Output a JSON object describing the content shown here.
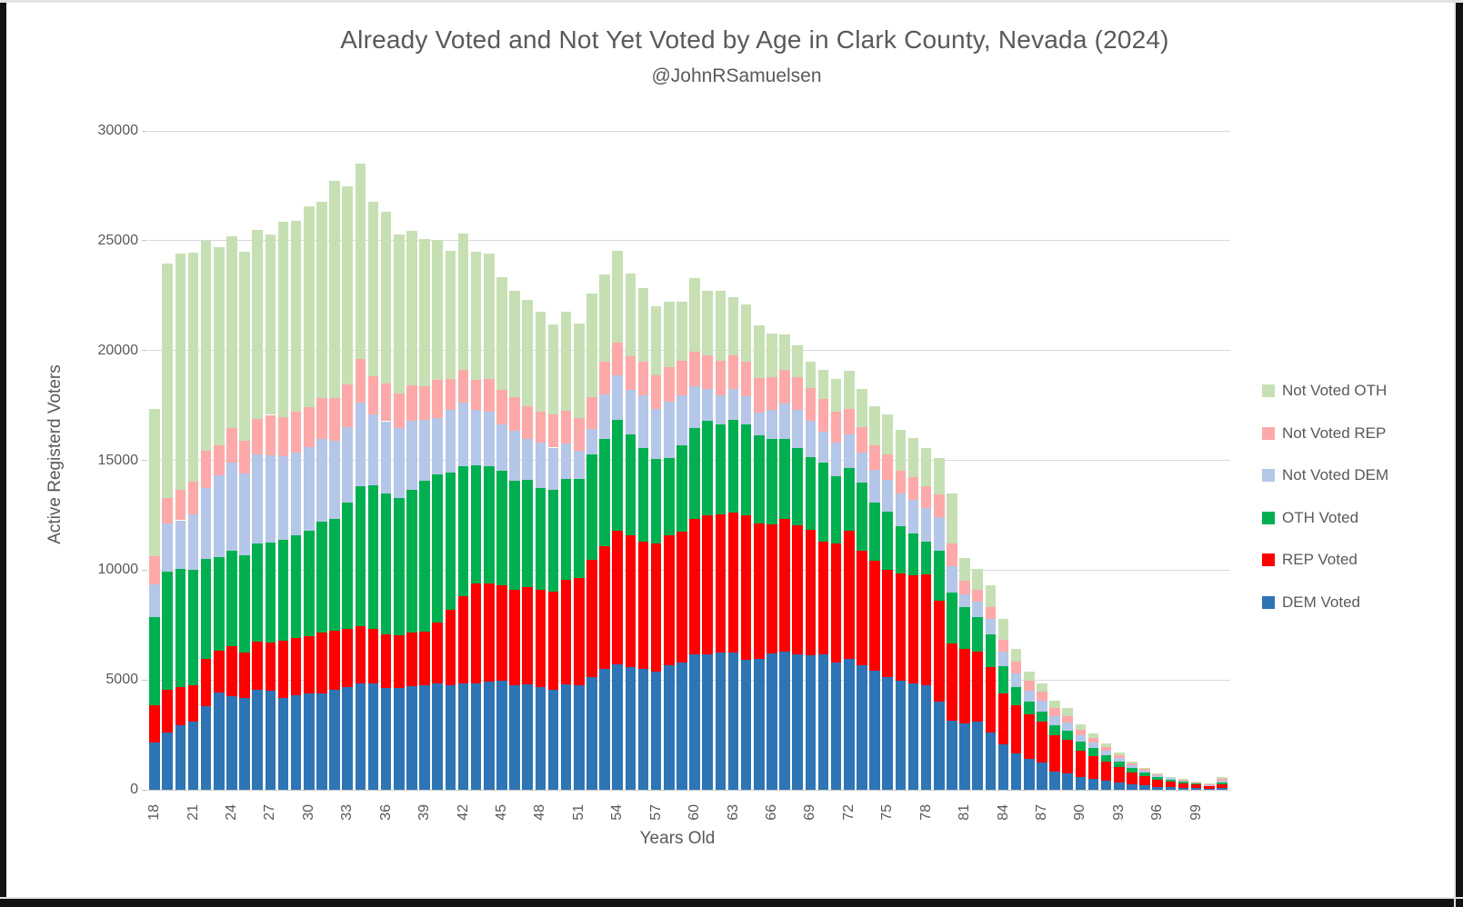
{
  "title": "Already Voted and Not Yet Voted by Age in Clark County, Nevada (2024)",
  "subtitle": "@JohnRSamuelsen",
  "chart_data": {
    "type": "bar",
    "stacked": true,
    "title": "Already Voted and Not Yet Voted by Age in Clark County, Nevada (2024)",
    "subtitle": "@JohnRSamuelsen",
    "xlabel": "Years Old",
    "ylabel": "Active Registerd Voters",
    "ylim": [
      0,
      30000
    ],
    "ytick_step": 5000,
    "ytick_labels": [
      "0",
      "5000",
      "10000",
      "15000",
      "20000",
      "25000",
      "30000"
    ],
    "xtick_labels": [
      "18",
      "21",
      "24",
      "27",
      "30",
      "33",
      "36",
      "39",
      "42",
      "45",
      "48",
      "51",
      "54",
      "57",
      "60",
      "63",
      "66",
      "69",
      "72",
      "75",
      "78",
      "81",
      "84",
      "87",
      "90",
      "93",
      "96",
      "99"
    ],
    "grid": true,
    "legend_position": "right",
    "legend_order_top_to_bottom": [
      "Not Voted OTH",
      "Not Voted REP",
      "Not Voted DEM",
      "OTH Voted",
      "REP Voted",
      "DEM Voted"
    ],
    "ages": [
      18,
      19,
      20,
      21,
      22,
      23,
      24,
      25,
      26,
      27,
      28,
      29,
      30,
      31,
      32,
      33,
      34,
      35,
      36,
      37,
      38,
      39,
      40,
      41,
      42,
      43,
      44,
      45,
      46,
      47,
      48,
      49,
      50,
      51,
      52,
      53,
      54,
      55,
      56,
      57,
      58,
      59,
      60,
      61,
      62,
      63,
      64,
      65,
      66,
      67,
      68,
      69,
      70,
      71,
      72,
      73,
      74,
      75,
      76,
      77,
      78,
      79,
      80,
      81,
      82,
      83,
      84,
      85,
      86,
      87,
      88,
      89,
      90,
      91,
      92,
      93,
      94,
      95,
      96,
      97,
      98,
      99,
      100,
      101
    ],
    "series": [
      {
        "name": "DEM Voted",
        "color": "#2e75b6",
        "values": [
          2150,
          2600,
          2930,
          3100,
          3800,
          4420,
          4260,
          4170,
          4545,
          4500,
          4170,
          4300,
          4380,
          4380,
          4545,
          4670,
          4830,
          4830,
          4630,
          4630,
          4710,
          4750,
          4830,
          4750,
          4830,
          4850,
          4930,
          4960,
          4750,
          4790,
          4680,
          4545,
          4790,
          4750,
          5120,
          5490,
          5710,
          5580,
          5490,
          5400,
          5650,
          5790,
          6170,
          6170,
          6230,
          6230,
          5920,
          5970,
          6200,
          6270,
          6170,
          6130,
          6170,
          5790,
          5950,
          5660,
          5410,
          5120,
          4960,
          4850,
          4750,
          4010,
          3130,
          3030,
          3100,
          2600,
          2070,
          1650,
          1405,
          1240,
          830,
          750,
          600,
          500,
          400,
          320,
          250,
          190,
          140,
          110,
          90,
          70,
          50,
          80
        ]
      },
      {
        "name": "REP Voted",
        "color": "#fe0000",
        "values": [
          1690,
          1945,
          1740,
          1650,
          2150,
          1900,
          2270,
          2070,
          2195,
          2190,
          2610,
          2600,
          2600,
          2770,
          2685,
          2645,
          2610,
          2485,
          2440,
          2390,
          2440,
          2440,
          2770,
          3450,
          3970,
          4530,
          4470,
          4370,
          4340,
          4430,
          4410,
          4475,
          4780,
          4880,
          5340,
          5590,
          6070,
          5990,
          5800,
          5830,
          5920,
          5950,
          6150,
          6340,
          6300,
          6400,
          6570,
          6150,
          5900,
          6050,
          5880,
          5720,
          5120,
          5410,
          5830,
          5220,
          5000,
          4880,
          4880,
          4900,
          5050,
          4600,
          3520,
          3370,
          3200,
          2980,
          2330,
          2210,
          2015,
          1860,
          1650,
          1520,
          1200,
          1050,
          880,
          730,
          550,
          430,
          320,
          260,
          210,
          160,
          110,
          180
        ]
      },
      {
        "name": "OTH Voted",
        "color": "#00b050",
        "values": [
          4010,
          5405,
          5370,
          5250,
          4550,
          4260,
          4340,
          4420,
          4460,
          4550,
          4620,
          4700,
          4820,
          5050,
          5120,
          5745,
          6400,
          6565,
          6440,
          6280,
          6490,
          6900,
          6740,
          6260,
          5950,
          5410,
          5350,
          5210,
          4960,
          4910,
          4630,
          4620,
          4600,
          4540,
          4830,
          4910,
          5080,
          4620,
          4280,
          3850,
          3530,
          3960,
          4130,
          4310,
          4120,
          4230,
          4160,
          4000,
          3890,
          3670,
          3520,
          3310,
          3590,
          3060,
          2850,
          3090,
          2680,
          2670,
          2140,
          1940,
          1490,
          2270,
          2350,
          1930,
          1550,
          1500,
          1220,
          820,
          590,
          450,
          450,
          410,
          400,
          350,
          300,
          250,
          200,
          160,
          120,
          100,
          70,
          60,
          40,
          80
        ]
      },
      {
        "name": "Not Voted DEM",
        "color": "#b5c7e8",
        "values": [
          1490,
          2160,
          2230,
          2520,
          3220,
          3720,
          4010,
          3760,
          4050,
          3970,
          3770,
          3770,
          3820,
          3790,
          3560,
          3470,
          3800,
          3230,
          3270,
          3150,
          3180,
          2770,
          2600,
          2820,
          2890,
          2490,
          2480,
          2110,
          2310,
          1860,
          2100,
          1940,
          1610,
          1250,
          1120,
          2020,
          2020,
          2030,
          2400,
          2240,
          2590,
          2270,
          1940,
          1440,
          1320,
          1400,
          1280,
          1070,
          1310,
          1610,
          1730,
          1640,
          1420,
          1540,
          1530,
          1400,
          1490,
          1460,
          1520,
          1500,
          1520,
          1520,
          1200,
          570,
          720,
          700,
          680,
          620,
          510,
          520,
          410,
          380,
          300,
          250,
          200,
          150,
          120,
          90,
          70,
          50,
          40,
          30,
          25,
          80
        ]
      },
      {
        "name": "Not Voted REP",
        "color": "#fda9a9",
        "values": [
          1280,
          1190,
          1370,
          1490,
          1735,
          1400,
          1570,
          1490,
          1650,
          1860,
          1810,
          1860,
          1820,
          1860,
          1940,
          1940,
          1990,
          1730,
          1730,
          1610,
          1610,
          1530,
          1740,
          1440,
          1490,
          1400,
          1490,
          1570,
          1530,
          1490,
          1410,
          1490,
          1490,
          1520,
          1480,
          1490,
          1490,
          1530,
          1530,
          1560,
          1570,
          1580,
          1570,
          1530,
          1570,
          1530,
          1570,
          1540,
          1500,
          1500,
          1500,
          1500,
          1500,
          1400,
          1160,
          1160,
          1120,
          1160,
          1040,
          1040,
          1030,
          1040,
          1000,
          600,
          520,
          550,
          520,
          520,
          440,
          410,
          380,
          310,
          250,
          200,
          170,
          130,
          90,
          70,
          60,
          40,
          40,
          30,
          25,
          70
        ]
      },
      {
        "name": "Not Voted OTH",
        "color": "#c6e0b4",
        "values": [
          6730,
          10650,
          10760,
          10440,
          9545,
          9000,
          8750,
          8590,
          8600,
          8230,
          8890,
          8670,
          9130,
          8930,
          9880,
          9010,
          8880,
          7940,
          7810,
          7230,
          7020,
          6690,
          6360,
          5830,
          6200,
          5820,
          5700,
          5130,
          4840,
          4830,
          4540,
          4130,
          4500,
          4300,
          4710,
          3970,
          4180,
          3760,
          3350,
          3140,
          2970,
          2680,
          3340,
          2940,
          3190,
          2650,
          2610,
          2420,
          1980,
          1640,
          1450,
          1200,
          1330,
          1500,
          1760,
          1730,
          1780,
          1820,
          1860,
          1800,
          1730,
          1660,
          2300,
          1040,
          960,
          970,
          980,
          600,
          440,
          350,
          350,
          350,
          250,
          200,
          150,
          120,
          90,
          60,
          40,
          40,
          30,
          30,
          30,
          70
        ]
      }
    ]
  }
}
